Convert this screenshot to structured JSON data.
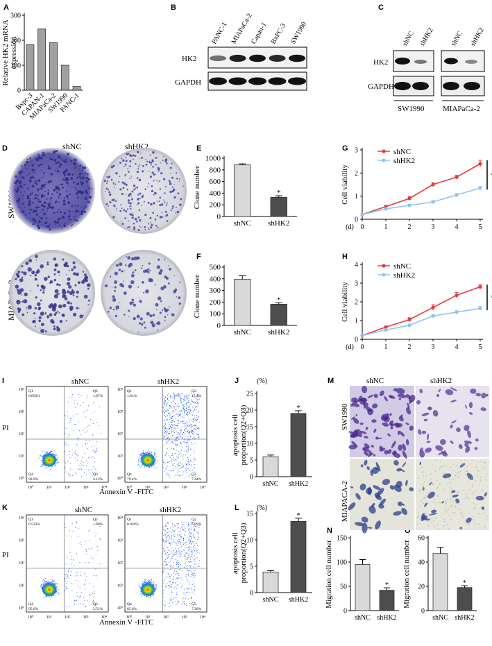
{
  "panels": {
    "A": "A",
    "B": "B",
    "C": "C",
    "D": "D",
    "E": "E",
    "F": "F",
    "G": "G",
    "H": "H",
    "I": "I",
    "J": "J",
    "K": "K",
    "L": "L",
    "M": "M",
    "N": "N",
    "O": "O"
  },
  "labels": {
    "shNC": "shNC",
    "shHK2": "shHK2",
    "HK2": "HK2",
    "GAPDH": "GAPDH",
    "SW1990": "SW1990",
    "MIAPaCa2": "MIAPaCa-2",
    "MIAPACA2": "MIAPACA-2",
    "PI": "PI",
    "annexin": "Annexin V -FITC",
    "percent": "(%)",
    "day": "(d)",
    "star": "*"
  },
  "blotB": {
    "lanes": [
      "PANC-1",
      "MIAPaCa-2",
      "Capan-1",
      "BxPC-3",
      "SW1990"
    ],
    "hk2_intensity": [
      0.45,
      0.85,
      0.9,
      0.8,
      0.9
    ]
  },
  "blotC": {
    "lanes": [
      "shNC",
      "shHK2"
    ]
  },
  "flow": {
    "I_shNC": {
      "Q1": "Q1",
      "Q2": "Q2",
      "Q3": "Q3",
      "Q4": "Q4",
      "v1": "0.092%",
      "v2": "1.07%",
      "v3": "4.12%",
      "v4": "93.9%"
    },
    "I_shHK2": {
      "Q1": "Q1",
      "Q2": "Q2",
      "Q3": "Q3",
      "Q4": "Q4",
      "v1": "1.61%",
      "v2": "11.4%",
      "v3": "7.44%",
      "v4": "79.4%"
    },
    "K_shNC": {
      "Q1": "Q1",
      "Q2": "Q2",
      "Q3": "Q3",
      "Q4": "Q4",
      "v1": "0.533%",
      "v2": "1.40%",
      "v3": "2.51%",
      "v4": "95.6%"
    },
    "K_shHK2": {
      "Q1": "Q1",
      "Q2": "Q2",
      "Q3": "Q3",
      "Q4": "Q4",
      "v1": "0.926%",
      "v2": "6.29%",
      "v3": "7.20%",
      "v4": "85.6%"
    },
    "xticks": [
      "10⁰",
      "10¹",
      "10²",
      "10³",
      "10⁴"
    ],
    "yticks": [
      "10⁰",
      "10¹",
      "10²",
      "10³",
      "10⁴"
    ]
  },
  "chart_data": [
    {
      "panel": "A",
      "type": "bar",
      "categories": [
        "Bxpc-3",
        "CAPAN-1",
        "MIAPaCa-2",
        "SW1990",
        "PANC-1"
      ],
      "values": [
        182,
        245,
        190,
        100,
        15
      ],
      "ylabel": "Relative HK2 mRNA expression",
      "ylim": [
        0,
        300
      ],
      "yticks": [
        0,
        100,
        200,
        300
      ]
    },
    {
      "panel": "E",
      "type": "bar",
      "categories": [
        "shNC",
        "shHK2"
      ],
      "values": [
        885,
        330
      ],
      "errors": [
        18,
        25
      ],
      "ylabel": "Clone number",
      "ylim": [
        0,
        1000
      ],
      "yticks": [
        0,
        200,
        400,
        600,
        800,
        1000
      ],
      "significance": "*"
    },
    {
      "panel": "F",
      "type": "bar",
      "categories": [
        "shNC",
        "shHK2"
      ],
      "values": [
        395,
        182
      ],
      "errors": [
        32,
        12
      ],
      "ylabel": "Clone number",
      "ylim": [
        0,
        500
      ],
      "yticks": [
        0,
        100,
        200,
        300,
        400,
        500
      ],
      "significance": "*"
    },
    {
      "panel": "G",
      "type": "line",
      "x": [
        0,
        1,
        2,
        3,
        4,
        5
      ],
      "series": [
        {
          "name": "shNC",
          "values": [
            0.2,
            0.55,
            0.9,
            1.5,
            1.82,
            2.4
          ],
          "errors": [
            0.03,
            0.05,
            0.08,
            0.08,
            0.08,
            0.15
          ]
        },
        {
          "name": "shHK2",
          "values": [
            0.2,
            0.45,
            0.6,
            0.75,
            1.05,
            1.35
          ],
          "errors": [
            0.03,
            0.05,
            0.05,
            0.06,
            0.06,
            0.07
          ]
        }
      ],
      "ylabel": "Cell viability",
      "xlabel": "(d)",
      "ylim": [
        0,
        3
      ],
      "yticks": [
        0,
        1,
        2,
        3
      ],
      "xticks": [
        0,
        1,
        2,
        3,
        4,
        5
      ],
      "significance": "*",
      "legend": "top-left"
    },
    {
      "panel": "H",
      "type": "line",
      "x": [
        0,
        1,
        2,
        3,
        4,
        5
      ],
      "series": [
        {
          "name": "shNC",
          "values": [
            0.2,
            0.65,
            1.05,
            1.7,
            2.35,
            2.8
          ],
          "errors": [
            0.03,
            0.06,
            0.1,
            0.15,
            0.15,
            0.12
          ]
        },
        {
          "name": "shHK2",
          "values": [
            0.2,
            0.5,
            0.75,
            1.25,
            1.45,
            1.65
          ],
          "errors": [
            0.03,
            0.05,
            0.06,
            0.07,
            0.08,
            0.1
          ]
        }
      ],
      "ylabel": "Cell viability",
      "xlabel": "(d)",
      "ylim": [
        0,
        4
      ],
      "yticks": [
        0,
        1,
        2,
        3,
        4
      ],
      "xticks": [
        0,
        1,
        2,
        3,
        4,
        5
      ],
      "significance": "*",
      "legend": "top-left"
    },
    {
      "panel": "J",
      "type": "bar",
      "categories": [
        "shNC",
        "shHK2"
      ],
      "values": [
        6,
        19
      ],
      "errors": [
        0.5,
        0.8
      ],
      "ylabel": "apoptosis cell proportion(Q2+Q3)",
      "ylim": [
        0,
        25
      ],
      "yticks": [
        0,
        5,
        10,
        15,
        20,
        25
      ],
      "significance": "*"
    },
    {
      "panel": "L",
      "type": "bar",
      "categories": [
        "shNC",
        "shHK2"
      ],
      "values": [
        3.9,
        13.5
      ],
      "errors": [
        0.25,
        0.6
      ],
      "ylabel": "apoptosis cell proportion(Q2+Q3)",
      "ylim": [
        0,
        15
      ],
      "yticks": [
        0,
        5,
        10,
        15
      ],
      "significance": "*"
    },
    {
      "panel": "N",
      "type": "bar",
      "categories": [
        "shNC",
        "shHK2"
      ],
      "values": [
        95,
        42
      ],
      "errors": [
        10,
        5
      ],
      "ylabel": "Migration cell number",
      "ylim": [
        0,
        150
      ],
      "yticks": [
        0,
        50,
        100,
        150
      ],
      "significance": "*"
    },
    {
      "panel": "O",
      "type": "bar",
      "categories": [
        "shNC",
        "shHK2"
      ],
      "values": [
        47,
        19
      ],
      "errors": [
        5,
        1.5
      ],
      "ylabel": "Migration cell number",
      "ylim": [
        0,
        60
      ],
      "yticks": [
        0,
        20,
        40,
        60
      ],
      "significance": "*"
    }
  ]
}
